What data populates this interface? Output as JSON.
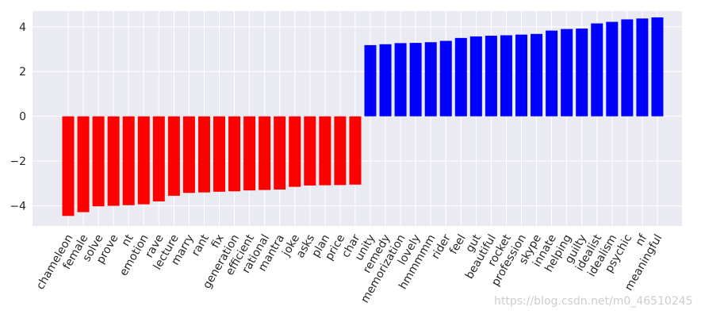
{
  "chart_data": {
    "type": "bar",
    "categories": [
      "chameleon",
      "female",
      "solve",
      "prove",
      "nt",
      "emotion",
      "rave",
      "lecture",
      "marry",
      "rant",
      "fix",
      "generation",
      "efficient",
      "rational",
      "mantra",
      "joke",
      "asks",
      "plan",
      "price",
      "char",
      "unity",
      "remedy",
      "memorization",
      "lovely",
      "hmmmmm",
      "rider",
      "feel",
      "gut",
      "beautiful",
      "rocket",
      "profession",
      "skype",
      "innate",
      "helping",
      "guilty",
      "idealist",
      "idealism",
      "psychic",
      "nf",
      "meaningful"
    ],
    "values": [
      -4.45,
      -4.28,
      -4.02,
      -4.0,
      -3.97,
      -3.93,
      -3.8,
      -3.55,
      -3.42,
      -3.4,
      -3.37,
      -3.35,
      -3.31,
      -3.29,
      -3.27,
      -3.15,
      -3.09,
      -3.08,
      -3.07,
      -3.05,
      3.18,
      3.22,
      3.27,
      3.28,
      3.31,
      3.37,
      3.5,
      3.57,
      3.6,
      3.62,
      3.65,
      3.68,
      3.83,
      3.9,
      3.92,
      4.15,
      4.22,
      4.33,
      4.37,
      4.42
    ],
    "ylim": [
      -4.9,
      4.7
    ],
    "yticks": [
      -4,
      -2,
      0,
      2,
      4
    ],
    "ytick_labels": [
      "−4",
      "−2",
      "0",
      "2",
      "4"
    ],
    "grid": true,
    "colors": {
      "negative": "#ff0000",
      "positive": "#0000ff",
      "background": "#eaeaf2",
      "grid": "#ffffff"
    }
  },
  "watermark": "https://blog.csdn.net/m0_46510245"
}
